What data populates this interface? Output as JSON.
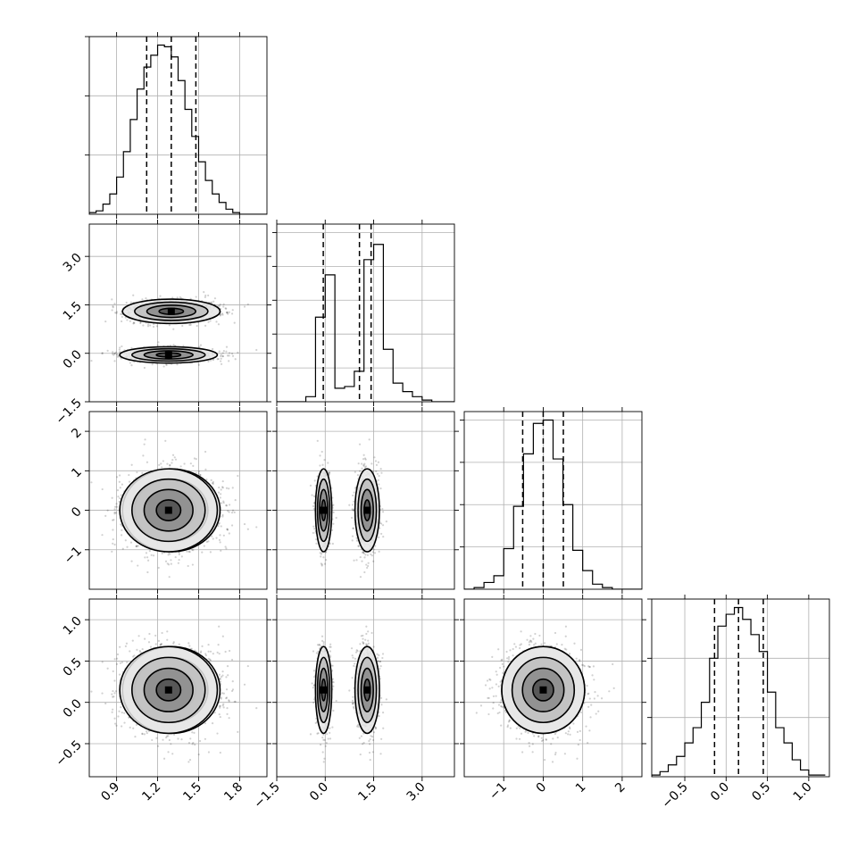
{
  "chart_data": {
    "type": "corner",
    "n_params": 4,
    "variables": [
      {
        "index": 0,
        "range": [
          0.7,
          2.0
        ],
        "ticks": [
          0.9,
          1.2,
          1.5,
          1.8
        ],
        "tick_labels": [
          "0.9",
          "1.2",
          "1.5",
          "1.8"
        ],
        "hist_bins": [
          0.7,
          0.75,
          0.8,
          0.85,
          0.9,
          0.95,
          1.0,
          1.05,
          1.1,
          1.15,
          1.2,
          1.25,
          1.3,
          1.35,
          1.4,
          1.45,
          1.5,
          1.55,
          1.6,
          1.65,
          1.7,
          1.75,
          1.8,
          1.85,
          1.9,
          1.95,
          2.0
        ],
        "hist_counts": [
          0.01,
          0.02,
          0.06,
          0.12,
          0.22,
          0.37,
          0.56,
          0.74,
          0.87,
          0.94,
          1.0,
          0.99,
          0.93,
          0.79,
          0.62,
          0.46,
          0.31,
          0.2,
          0.12,
          0.07,
          0.03,
          0.01,
          0.0,
          0.0,
          0.0,
          0.0
        ],
        "quantiles": [
          1.12,
          1.3,
          1.48
        ],
        "hist_yticks": [
          0.35,
          0.7,
          1.05
        ]
      },
      {
        "index": 1,
        "range": [
          -1.5,
          4.0
        ],
        "ticks": [
          -1.5,
          0.0,
          1.5,
          3.0
        ],
        "tick_labels": [
          "−1.5",
          "0.0",
          "1.5",
          "3.0"
        ],
        "hist_bins": [
          -1.5,
          -1.2,
          -0.9,
          -0.6,
          -0.3,
          0.0,
          0.3,
          0.6,
          0.9,
          1.2,
          1.5,
          1.8,
          2.1,
          2.4,
          2.7,
          3.0,
          3.3,
          3.6,
          3.9,
          4.2
        ],
        "hist_counts": [
          0.0,
          0.0,
          0.0,
          0.03,
          0.5,
          0.75,
          0.08,
          0.09,
          0.18,
          0.84,
          0.93,
          0.31,
          0.11,
          0.06,
          0.03,
          0.01,
          0.0,
          0.0,
          0.0
        ],
        "quantiles": [
          -0.06,
          1.06,
          1.42
        ],
        "hist_yticks": [
          0.2,
          0.4,
          0.6,
          0.8,
          1.0
        ]
      },
      {
        "index": 2,
        "range": [
          -2.0,
          2.5
        ],
        "ticks": [
          -1,
          0,
          1,
          2
        ],
        "tick_labels": [
          "−1",
          "0",
          "1",
          "2"
        ],
        "hist_bins": [
          -2.0,
          -1.75,
          -1.5,
          -1.25,
          -1.0,
          -0.75,
          -0.5,
          -0.25,
          0.0,
          0.25,
          0.5,
          0.75,
          1.0,
          1.25,
          1.5,
          1.75,
          2.0,
          2.25,
          2.5
        ],
        "hist_counts": [
          0.0,
          0.01,
          0.04,
          0.08,
          0.24,
          0.49,
          0.8,
          0.98,
          1.0,
          0.77,
          0.5,
          0.23,
          0.11,
          0.03,
          0.01,
          0.0,
          0.0,
          0.0
        ],
        "quantiles": [
          -0.52,
          0.0,
          0.51
        ],
        "hist_yticks": [
          0.25,
          0.5,
          0.75,
          1.0
        ]
      },
      {
        "index": 3,
        "range": [
          -0.9,
          1.25
        ],
        "ticks": [
          -0.5,
          0.0,
          0.5,
          1.0
        ],
        "tick_labels": [
          "−0.5",
          "0.0",
          "0.5",
          "1.0"
        ],
        "hist_bins": [
          -0.9,
          -0.8,
          -0.7,
          -0.6,
          -0.5,
          -0.4,
          -0.3,
          -0.2,
          -0.1,
          0.0,
          0.1,
          0.2,
          0.3,
          0.4,
          0.5,
          0.6,
          0.7,
          0.8,
          0.9,
          1.0,
          1.1,
          1.2
        ],
        "hist_counts": [
          0.01,
          0.03,
          0.07,
          0.12,
          0.2,
          0.29,
          0.44,
          0.7,
          0.89,
          0.96,
          1.0,
          0.93,
          0.84,
          0.74,
          0.5,
          0.29,
          0.2,
          0.1,
          0.04,
          0.01,
          0.01
        ],
        "quantiles": [
          -0.14,
          0.15,
          0.45
        ],
        "hist_yticks": [
          0.35,
          0.7,
          1.05
        ]
      }
    ],
    "posterior_components": [
      {
        "weight": 0.58,
        "mean": [
          1.3,
          1.3,
          0.0,
          0.15
        ],
        "sd": [
          0.17,
          0.18,
          0.5,
          0.25
        ]
      },
      {
        "weight": 0.42,
        "mean": [
          1.28,
          -0.05,
          0.0,
          0.15
        ],
        "sd": [
          0.17,
          0.12,
          0.5,
          0.25
        ]
      }
    ],
    "contour_levels_sigma": [
      0.5,
      1.0,
      1.5,
      2.0
    ],
    "grid": true,
    "title": "",
    "xlabel": "",
    "ylabel": ""
  }
}
